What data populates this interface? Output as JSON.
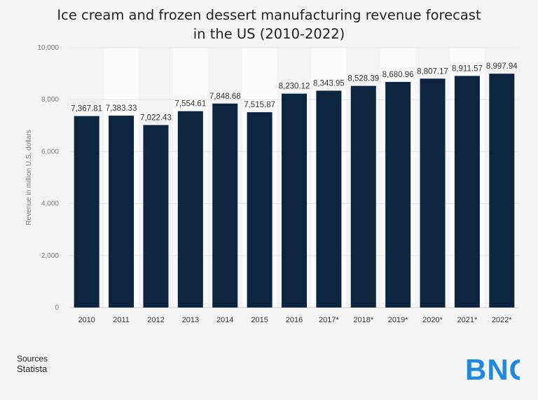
{
  "title_lines": [
    "Ice cream and frozen dessert manufacturing revenue forecast",
    "in the US (2010-2022)"
  ],
  "sources": {
    "label": "Sources",
    "name": "Statista"
  },
  "logo": {
    "text": "BNG",
    "color": "#1e88e5"
  },
  "chart_data": {
    "type": "bar",
    "title": "Ice cream and frozen dessert manufacturing revenue forecast in the US (2010-2022)",
    "xlabel": "",
    "ylabel": "Revenue in million U.S. dollars",
    "categories": [
      "2010",
      "2011",
      "2012",
      "2013",
      "2014",
      "2015",
      "2016",
      "2017*",
      "2018*",
      "2019*",
      "2020*",
      "2021*",
      "2022*"
    ],
    "values": [
      7367.81,
      7383.33,
      7022.43,
      7554.61,
      7848.68,
      7515.87,
      8230.12,
      8343.95,
      8528.39,
      8680.96,
      8807.17,
      8911.57,
      8997.94
    ],
    "value_labels": [
      "7,367.81",
      "7,383.33",
      "7,022.43",
      "7,554.61",
      "7,848.68",
      "7,515.87",
      "8,230.12",
      "8,343.95",
      "8,528.39",
      "8,680.96",
      "8,807.17",
      "8,911.57",
      "8,997.94"
    ],
    "yticks": [
      0,
      2000,
      4000,
      6000,
      8000,
      10000
    ],
    "ytick_labels": [
      "0",
      "2,000",
      "4,000",
      "6,000",
      "8,000",
      "10,000"
    ],
    "ylim": [
      0,
      10000
    ],
    "grid": true,
    "bar_color": "#0e2540",
    "legend": "none"
  }
}
